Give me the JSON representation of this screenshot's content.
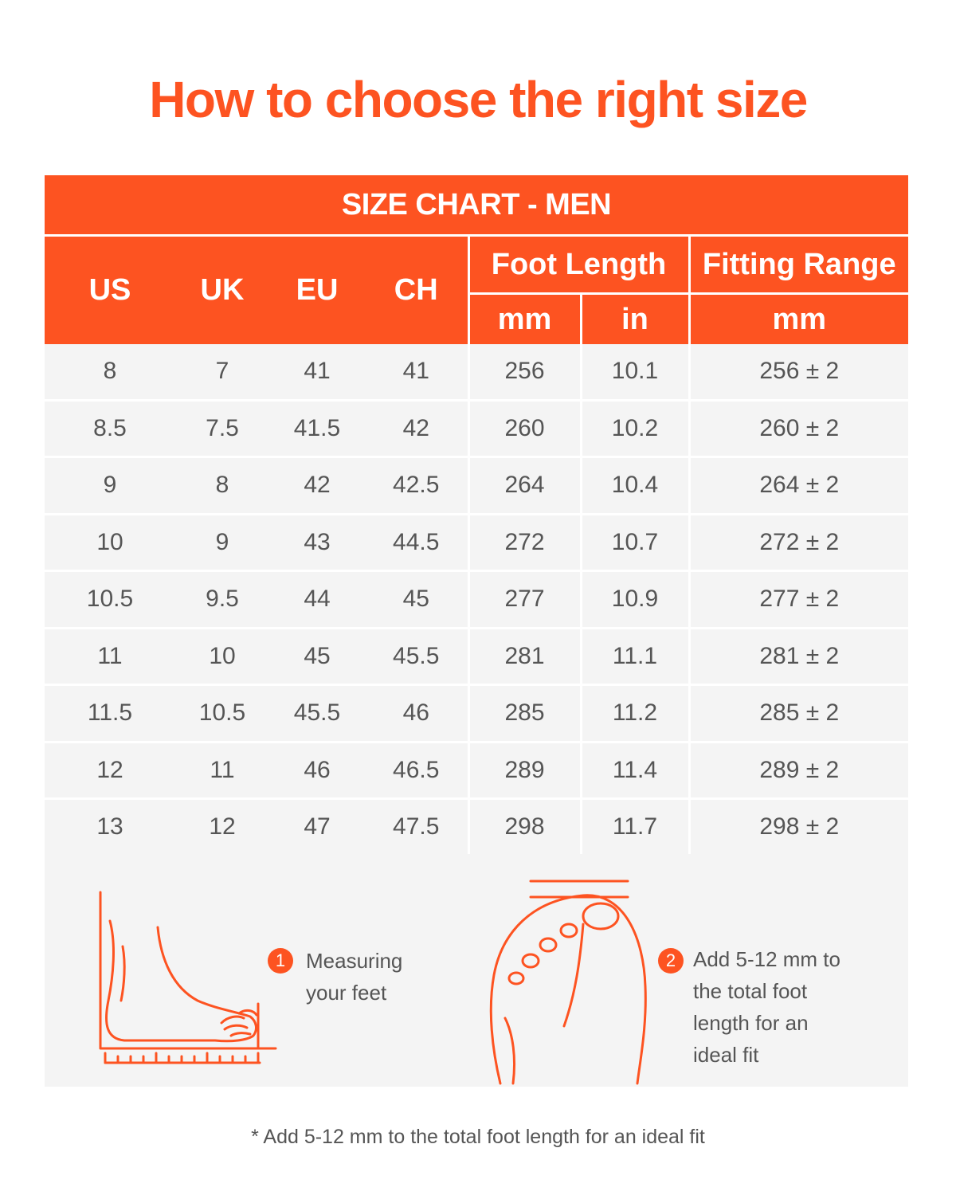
{
  "title": "How to choose the right size",
  "chart_title": "SIZE CHART - MEN",
  "headers": {
    "us": "US",
    "uk": "UK",
    "eu": "EU",
    "ch": "CH",
    "foot_length": "Foot Length",
    "fitting_range": "Fitting Range",
    "foot_mm": "mm",
    "foot_in": "in",
    "fit_mm": "mm"
  },
  "rows": [
    {
      "us": "8",
      "uk": "7",
      "eu": "41",
      "ch": "41",
      "mm": "256",
      "in": "10.1",
      "fit": "256 ± 2"
    },
    {
      "us": "8.5",
      "uk": "7.5",
      "eu": "41.5",
      "ch": "42",
      "mm": "260",
      "in": "10.2",
      "fit": "260 ± 2"
    },
    {
      "us": "9",
      "uk": "8",
      "eu": "42",
      "ch": "42.5",
      "mm": "264",
      "in": "10.4",
      "fit": "264 ± 2"
    },
    {
      "us": "10",
      "uk": "9",
      "eu": "43",
      "ch": "44.5",
      "mm": "272",
      "in": "10.7",
      "fit": "272 ± 2"
    },
    {
      "us": "10.5",
      "uk": "9.5",
      "eu": "44",
      "ch": "45",
      "mm": "277",
      "in": "10.9",
      "fit": "277 ± 2"
    },
    {
      "us": "11",
      "uk": "10",
      "eu": "45",
      "ch": "45.5",
      "mm": "281",
      "in": "11.1",
      "fit": "281 ± 2"
    },
    {
      "us": "11.5",
      "uk": "10.5",
      "eu": "45.5",
      "ch": "46",
      "mm": "285",
      "in": "11.2",
      "fit": "285 ± 2"
    },
    {
      "us": "12",
      "uk": "11",
      "eu": "46",
      "ch": "46.5",
      "mm": "289",
      "in": "11.4",
      "fit": "289 ± 2"
    },
    {
      "us": "13",
      "uk": "12",
      "eu": "47",
      "ch": "47.5",
      "mm": "298",
      "in": "11.7",
      "fit": "298 ± 2"
    }
  ],
  "steps": [
    {
      "number": "1",
      "lines": [
        "Measuring",
        "your feet"
      ],
      "icon": "foot-side-ruler-icon"
    },
    {
      "number": "2",
      "lines": [
        "Add 5-12 mm to",
        "the total foot",
        "length for an",
        "ideal fit"
      ],
      "icon": "foot-top-icon"
    }
  ],
  "footnote": "* Add 5-12 mm to the total foot length for an ideal fit",
  "colors": {
    "accent": "#fd5321",
    "row_bg": "#f4f4f4",
    "text": "#555555"
  }
}
